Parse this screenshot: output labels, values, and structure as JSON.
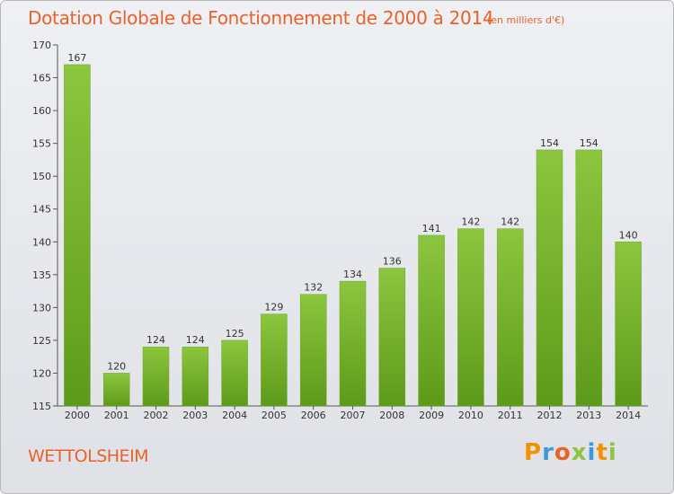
{
  "chart_data": {
    "type": "bar",
    "title": "Dotation Globale de Fonctionnement de 2000 à 2014",
    "subtitle": "(en milliers d'€)",
    "categories": [
      "2000",
      "2001",
      "2002",
      "2003",
      "2004",
      "2005",
      "2006",
      "2007",
      "2008",
      "2009",
      "2010",
      "2011",
      "2012",
      "2013",
      "2014"
    ],
    "values": [
      167,
      120,
      124,
      124,
      125,
      129,
      132,
      134,
      136,
      141,
      142,
      142,
      154,
      154,
      140
    ],
    "ylim": [
      115,
      170
    ],
    "yticks": [
      115,
      120,
      125,
      130,
      135,
      140,
      145,
      150,
      155,
      160,
      165,
      170
    ],
    "xlabel": "",
    "ylabel": "",
    "grid": false,
    "bar_color": "#8cc63f",
    "bar_color_dark": "#5e9a1a"
  },
  "commune": "WETTOLSHEIM",
  "brand": {
    "letters": [
      "P",
      "r",
      "o",
      "x",
      "i",
      "t",
      "i"
    ],
    "colors": [
      "#f39200",
      "#3a9ad9",
      "#e8622a",
      "#8cc63f",
      "#3a9ad9",
      "#f39200",
      "#8cc63f"
    ]
  },
  "colors": {
    "text_accent": "#e8622a",
    "axis": "#555555"
  }
}
